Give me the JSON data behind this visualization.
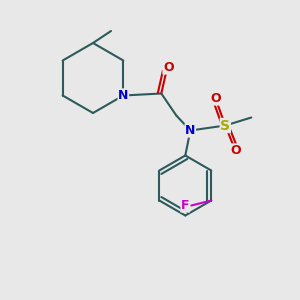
{
  "bg_color": "#e8e8e8",
  "bond_color": "#2d5a5a",
  "bond_lw": 1.5,
  "atom_colors": {
    "N": "#0000cc",
    "O": "#cc0000",
    "F": "#cc00cc",
    "S": "#aaaa00",
    "C": "#2d5a5a"
  },
  "font_size": 9,
  "font_size_small": 8
}
